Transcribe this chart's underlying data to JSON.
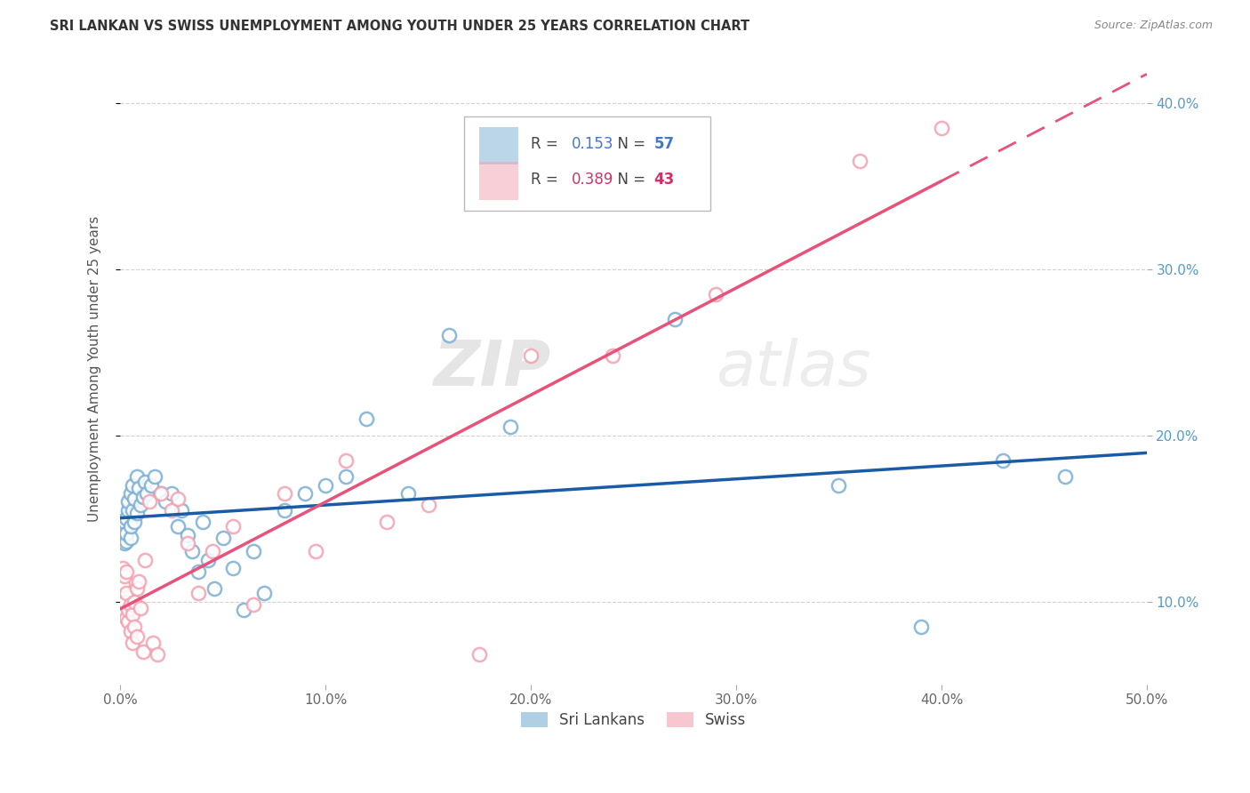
{
  "title": "SRI LANKAN VS SWISS UNEMPLOYMENT AMONG YOUTH UNDER 25 YEARS CORRELATION CHART",
  "source": "Source: ZipAtlas.com",
  "ylabel": "Unemployment Among Youth under 25 years",
  "xlim": [
    0.0,
    0.5
  ],
  "ylim": [
    0.05,
    0.43
  ],
  "xticks": [
    0.0,
    0.1,
    0.2,
    0.3,
    0.4,
    0.5
  ],
  "yticks": [
    0.1,
    0.2,
    0.3,
    0.4
  ],
  "xtick_labels": [
    "0.0%",
    "10.0%",
    "20.0%",
    "30.0%",
    "40.0%",
    "50.0%"
  ],
  "ytick_labels": [
    "10.0%",
    "20.0%",
    "30.0%",
    "40.0%"
  ],
  "sri_lankans_x": [
    0.001,
    0.001,
    0.001,
    0.002,
    0.002,
    0.002,
    0.002,
    0.003,
    0.003,
    0.003,
    0.004,
    0.004,
    0.005,
    0.005,
    0.005,
    0.006,
    0.006,
    0.007,
    0.007,
    0.008,
    0.008,
    0.009,
    0.01,
    0.011,
    0.012,
    0.013,
    0.015,
    0.017,
    0.02,
    0.022,
    0.025,
    0.028,
    0.03,
    0.033,
    0.035,
    0.038,
    0.04,
    0.043,
    0.046,
    0.05,
    0.055,
    0.06,
    0.065,
    0.07,
    0.08,
    0.09,
    0.1,
    0.11,
    0.12,
    0.14,
    0.16,
    0.19,
    0.27,
    0.35,
    0.39,
    0.43,
    0.46
  ],
  "sri_lankans_y": [
    0.138,
    0.142,
    0.145,
    0.135,
    0.14,
    0.143,
    0.148,
    0.136,
    0.141,
    0.15,
    0.155,
    0.16,
    0.138,
    0.145,
    0.165,
    0.155,
    0.17,
    0.148,
    0.162,
    0.153,
    0.175,
    0.168,
    0.158,
    0.163,
    0.172,
    0.165,
    0.17,
    0.175,
    0.165,
    0.16,
    0.165,
    0.145,
    0.155,
    0.14,
    0.13,
    0.118,
    0.148,
    0.125,
    0.108,
    0.138,
    0.12,
    0.095,
    0.13,
    0.105,
    0.155,
    0.165,
    0.17,
    0.175,
    0.21,
    0.165,
    0.26,
    0.205,
    0.27,
    0.17,
    0.085,
    0.185,
    0.175
  ],
  "swiss_x": [
    0.001,
    0.001,
    0.002,
    0.002,
    0.003,
    0.003,
    0.003,
    0.004,
    0.004,
    0.005,
    0.005,
    0.006,
    0.006,
    0.007,
    0.007,
    0.008,
    0.008,
    0.009,
    0.01,
    0.011,
    0.012,
    0.014,
    0.016,
    0.018,
    0.02,
    0.025,
    0.028,
    0.033,
    0.038,
    0.045,
    0.055,
    0.065,
    0.08,
    0.095,
    0.11,
    0.13,
    0.15,
    0.175,
    0.2,
    0.24,
    0.29,
    0.36,
    0.4
  ],
  "swiss_y": [
    0.11,
    0.12,
    0.1,
    0.115,
    0.09,
    0.105,
    0.118,
    0.088,
    0.095,
    0.082,
    0.098,
    0.075,
    0.092,
    0.085,
    0.1,
    0.079,
    0.108,
    0.112,
    0.096,
    0.07,
    0.125,
    0.16,
    0.075,
    0.068,
    0.165,
    0.155,
    0.162,
    0.135,
    0.105,
    0.13,
    0.145,
    0.098,
    0.165,
    0.13,
    0.185,
    0.148,
    0.158,
    0.068,
    0.248,
    0.248,
    0.285,
    0.365,
    0.385
  ],
  "sri_lankans_R": 0.153,
  "sri_lankans_N": 57,
  "swiss_R": 0.389,
  "swiss_N": 43,
  "sri_color": "#7BAFD4",
  "swiss_color": "#F4A0B0",
  "sri_line_color": "#1A5BA6",
  "swiss_line_color": "#E8527A",
  "watermark_zip": "ZIP",
  "watermark_atlas": "atlas",
  "background_color": "#FFFFFF",
  "grid_color": "#CCCCCC"
}
